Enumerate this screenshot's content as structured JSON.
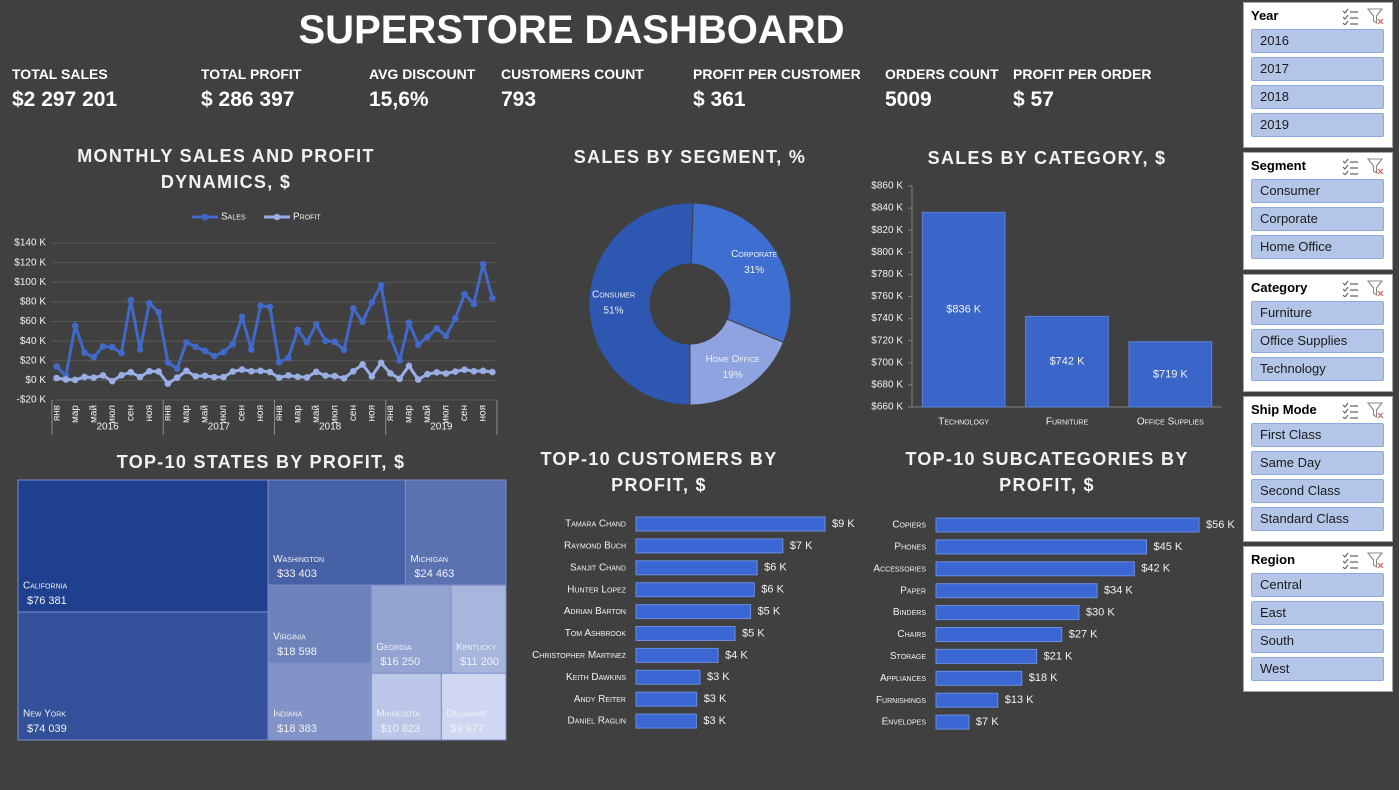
{
  "title": "SUPERSTORE DASHBOARD",
  "kpis": [
    {
      "label": "TOTAL SALES",
      "value": "$2 297 201"
    },
    {
      "label": "TOTAL PROFIT",
      "value": "$ 286 397"
    },
    {
      "label": "AVG DISCOUNT",
      "value": "15,6%"
    },
    {
      "label": "CUSTOMERS COUNT",
      "value": "793"
    },
    {
      "label": "PROFIT PER CUSTOMER",
      "value": "$ 361"
    },
    {
      "label": "ORDERS COUNT",
      "value": "5009"
    },
    {
      "label": "PROFIT PER ORDER",
      "value": "$ 57"
    }
  ],
  "chart_data": [
    {
      "type": "line",
      "title": "MONTHLY SALES AND PROFIT DYNAMICS, $",
      "categories": [
        "янв",
        null,
        "мар",
        null,
        "май",
        null,
        "июл",
        null,
        "сен",
        null,
        "ноя",
        null,
        "янв",
        null,
        "мар",
        null,
        "май",
        null,
        "июл",
        null,
        "сен",
        null,
        "ноя",
        null,
        "янв",
        null,
        "мар",
        null,
        "май",
        null,
        "июл",
        null,
        "сен",
        null,
        "ноя",
        null,
        "янв",
        null,
        "мар",
        null,
        "май",
        null,
        "июл",
        null,
        "сен",
        null,
        "ноя",
        null
      ],
      "groups": [
        "2016",
        "2017",
        "2018",
        "2019"
      ],
      "series": [
        {
          "name": "Sales",
          "color": "#4169c9",
          "values": [
            14200,
            4500,
            55700,
            28300,
            23600,
            34600,
            33900,
            27900,
            81800,
            31500,
            78600,
            69500,
            18200,
            12000,
            38700,
            34200,
            30100,
            24800,
            28800,
            36900,
            64600,
            31400,
            76000,
            74900,
            18500,
            23000,
            51700,
            38800,
            57000,
            40300,
            39300,
            31100,
            73400,
            59700,
            79400,
            97000,
            44000,
            20300,
            58900,
            36500,
            44300,
            53000,
            45300,
            63100,
            87900,
            77800,
            118400,
            83800
          ]
        },
        {
          "name": "Profit",
          "color": "#9aaee6",
          "values": [
            2400,
            900,
            500,
            3500,
            2700,
            5000,
            -800,
            5300,
            8300,
            3400,
            9300,
            9000,
            -3300,
            2800,
            9700,
            4200,
            4700,
            3300,
            3300,
            9000,
            11000,
            9300,
            9700,
            8500,
            2800,
            5000,
            3600,
            3000,
            8700,
            4800,
            4400,
            2100,
            9300,
            16200,
            4000,
            17900,
            7100,
            1600,
            14800,
            900,
            6300,
            8200,
            7000,
            9000,
            10900,
            9300,
            9700,
            8500
          ]
        }
      ],
      "ylim": [
        -20000,
        140000
      ],
      "yticks": [
        {
          "value": -20000,
          "label": "-$20 K"
        },
        {
          "value": 0,
          "label": "$0 K"
        },
        {
          "value": 20000,
          "label": "$20 K"
        },
        {
          "value": 40000,
          "label": "$40 K"
        },
        {
          "value": 60000,
          "label": "$60 K"
        },
        {
          "value": 80000,
          "label": "$80 K"
        },
        {
          "value": 100000,
          "label": "$100 K"
        },
        {
          "value": 120000,
          "label": "$120 K"
        },
        {
          "value": 140000,
          "label": "$140 K"
        }
      ],
      "grid": true,
      "legend": "top"
    },
    {
      "type": "donut",
      "title": "SALES BY SEGMENT, %",
      "categories": [
        "Consumer",
        "Corporate",
        "Home Office"
      ],
      "values": [
        51,
        31,
        19
      ],
      "value_labels": [
        "51%",
        "31%",
        "19%"
      ],
      "colors": [
        "#2d57b0",
        "#3e6ed0",
        "#8ea3df"
      ]
    },
    {
      "type": "bar",
      "title": "SALES BY CATEGORY, $",
      "categories": [
        "Technology",
        "Furniture",
        "Office Supplies"
      ],
      "values": [
        836154,
        741999,
        719047
      ],
      "value_labels": [
        "$836 K",
        "$742 K",
        "$719 K"
      ],
      "color": "#3a66c9",
      "ylim": [
        660000,
        860000
      ],
      "yticks": [
        {
          "value": 660000,
          "label": "$660 K"
        },
        {
          "value": 680000,
          "label": "$680 K"
        },
        {
          "value": 700000,
          "label": "$700 K"
        },
        {
          "value": 720000,
          "label": "$720 K"
        },
        {
          "value": 740000,
          "label": "$740 K"
        },
        {
          "value": 760000,
          "label": "$760 K"
        },
        {
          "value": 780000,
          "label": "$780 K"
        },
        {
          "value": 800000,
          "label": "$800 K"
        },
        {
          "value": 820000,
          "label": "$820 K"
        },
        {
          "value": 840000,
          "label": "$840 K"
        },
        {
          "value": 860000,
          "label": "$860 K"
        }
      ],
      "grid": false
    },
    {
      "type": "treemap",
      "title": "TOP-10 STATES BY PROFIT, $",
      "categories": [
        "California",
        "New York",
        "Washington",
        "Michigan",
        "Virginia",
        "Indiana",
        "Georgia",
        "Kentucky",
        "Minnesota",
        "Delaware"
      ],
      "values": [
        76381,
        74039,
        33403,
        24463,
        18598,
        18383,
        16250,
        11200,
        10823,
        9977
      ],
      "value_labels": [
        "$76 381",
        "$74 039",
        "$33 403",
        "$24 463",
        "$18 598",
        "$18 383",
        "$16 250",
        "$11 200",
        "$10 823",
        "$9 977"
      ],
      "color_range": [
        "#1f3f8f",
        "#cfd7f3"
      ]
    },
    {
      "type": "hbar",
      "title": "TOP-10 CUSTOMERS BY PROFIT, $",
      "categories": [
        "Tamara Chand",
        "Raymond Buch",
        "Sanjit Chand",
        "Hunter Lopez",
        "Adrian Barton",
        "Tom Ashbrook",
        "Christopher Martinez",
        "Keith Dawkins",
        "Andy Reiter",
        "Daniel Raglin"
      ],
      "values": [
        8981,
        6976,
        5757,
        5622,
        5444,
        4704,
        3900,
        3039,
        2884,
        2869
      ],
      "value_labels": [
        "$9 K",
        "$7 K",
        "$6 K",
        "$6 K",
        "$5 K",
        "$5 K",
        "$4 K",
        "$3 K",
        "$3 K",
        "$3 K"
      ],
      "color": "#3a67d4"
    },
    {
      "type": "hbar",
      "title": "TOP-10 SUBCATEGORIES BY PROFIT, $",
      "categories": [
        "Copiers",
        "Phones",
        "Accessories",
        "Paper",
        "Binders",
        "Chairs",
        "Storage",
        "Appliances",
        "Furnishings",
        "Envelopes"
      ],
      "values": [
        55618,
        44516,
        41937,
        34054,
        30222,
        26590,
        21279,
        18138,
        13059,
        6964
      ],
      "value_labels": [
        "$56 K",
        "$45 K",
        "$42 K",
        "$34 K",
        "$30 K",
        "$27 K",
        "$21 K",
        "$18 K",
        "$13 K",
        "$7 K"
      ],
      "color": "#3a67d4"
    }
  ],
  "slicers": [
    {
      "title": "Year",
      "items": [
        "2016",
        "2017",
        "2018",
        "2019"
      ]
    },
    {
      "title": "Segment",
      "items": [
        "Consumer",
        "Corporate",
        "Home Office"
      ]
    },
    {
      "title": "Category",
      "items": [
        "Furniture",
        "Office Supplies",
        "Technology"
      ]
    },
    {
      "title": "Ship Mode",
      "items": [
        "First Class",
        "Same Day",
        "Second Class",
        "Standard Class"
      ]
    },
    {
      "title": "Region",
      "items": [
        "Central",
        "East",
        "South",
        "West"
      ]
    }
  ]
}
